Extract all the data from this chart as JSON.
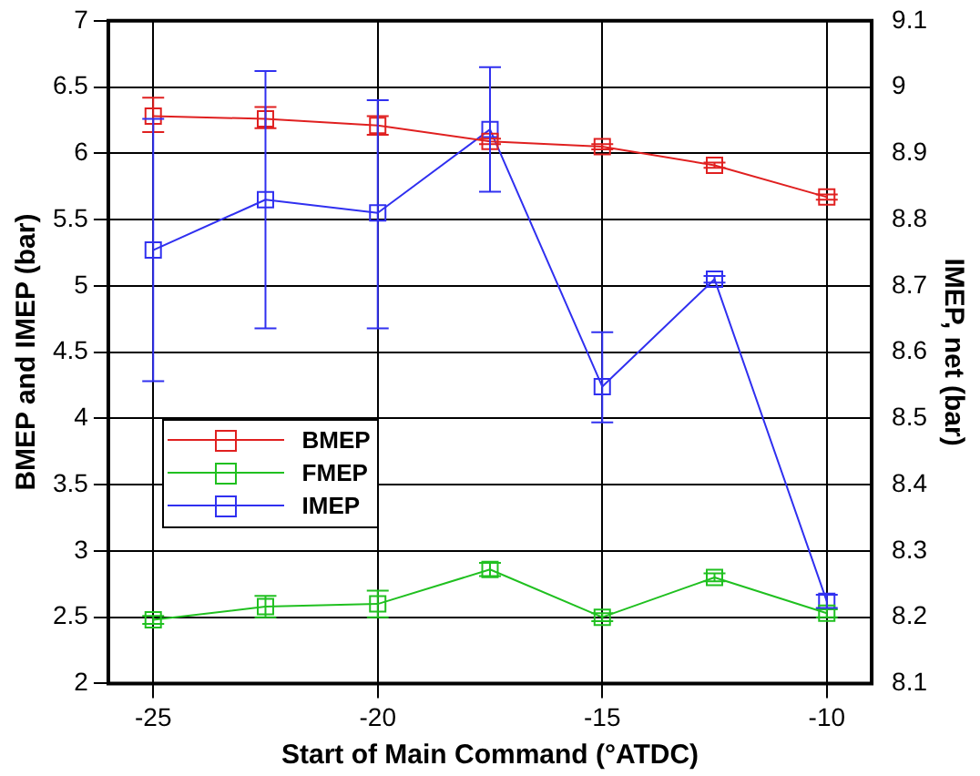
{
  "chart_data": {
    "type": "line",
    "xlabel": "Start of Main Command (°ATDC)",
    "ylabel": "BMEP and IMEP (bar)",
    "y2label": "IMEP, net (bar)",
    "x": [
      -25,
      -22.5,
      -20,
      -17.5,
      -15,
      -12.5,
      -10
    ],
    "xlim": [
      -26,
      -9
    ],
    "xticks": [
      -25,
      -20,
      -15,
      -10
    ],
    "ylim": [
      2,
      7
    ],
    "yticks": [
      2,
      2.5,
      3,
      3.5,
      4,
      4.5,
      5,
      5.5,
      6,
      6.5,
      7
    ],
    "y2lim": [
      8.1,
      9.1
    ],
    "y2ticks": [
      8.1,
      8.2,
      8.3,
      8.4,
      8.5,
      8.6,
      8.7,
      8.8,
      8.9,
      9,
      9.1
    ],
    "grid": true,
    "legend": "left",
    "marker": "square",
    "line_style": "solid",
    "series": [
      {
        "name": "BMEP",
        "color": "#e02020",
        "values": [
          6.28,
          6.26,
          6.21,
          6.09,
          6.05,
          5.91,
          5.67
        ],
        "errors": [
          [
            6.16,
            6.42
          ],
          [
            6.19,
            6.35
          ],
          [
            6.14,
            6.28
          ],
          0.02,
          0.02,
          0.02,
          0.02
        ]
      },
      {
        "name": "FMEP",
        "color": "#20c020",
        "values": [
          2.48,
          2.58,
          2.6,
          2.86,
          2.5,
          2.8,
          2.53
        ],
        "errors": [
          0.03,
          0.08,
          0.1,
          0.05,
          0.03,
          0.03,
          0.03
        ]
      },
      {
        "name": "IMEP",
        "color": "#3030f0",
        "axis": "y2",
        "values": [
          8.754,
          8.83,
          8.81,
          8.936,
          8.548,
          8.71,
          8.224
        ],
        "errors": [
          [
            8.556,
            8.952
          ],
          [
            8.636,
            9.024
          ],
          [
            8.636,
            8.98
          ],
          [
            8.842,
            9.03
          ],
          [
            8.494,
            8.63
          ],
          0.005,
          0.01
        ]
      }
    ]
  }
}
